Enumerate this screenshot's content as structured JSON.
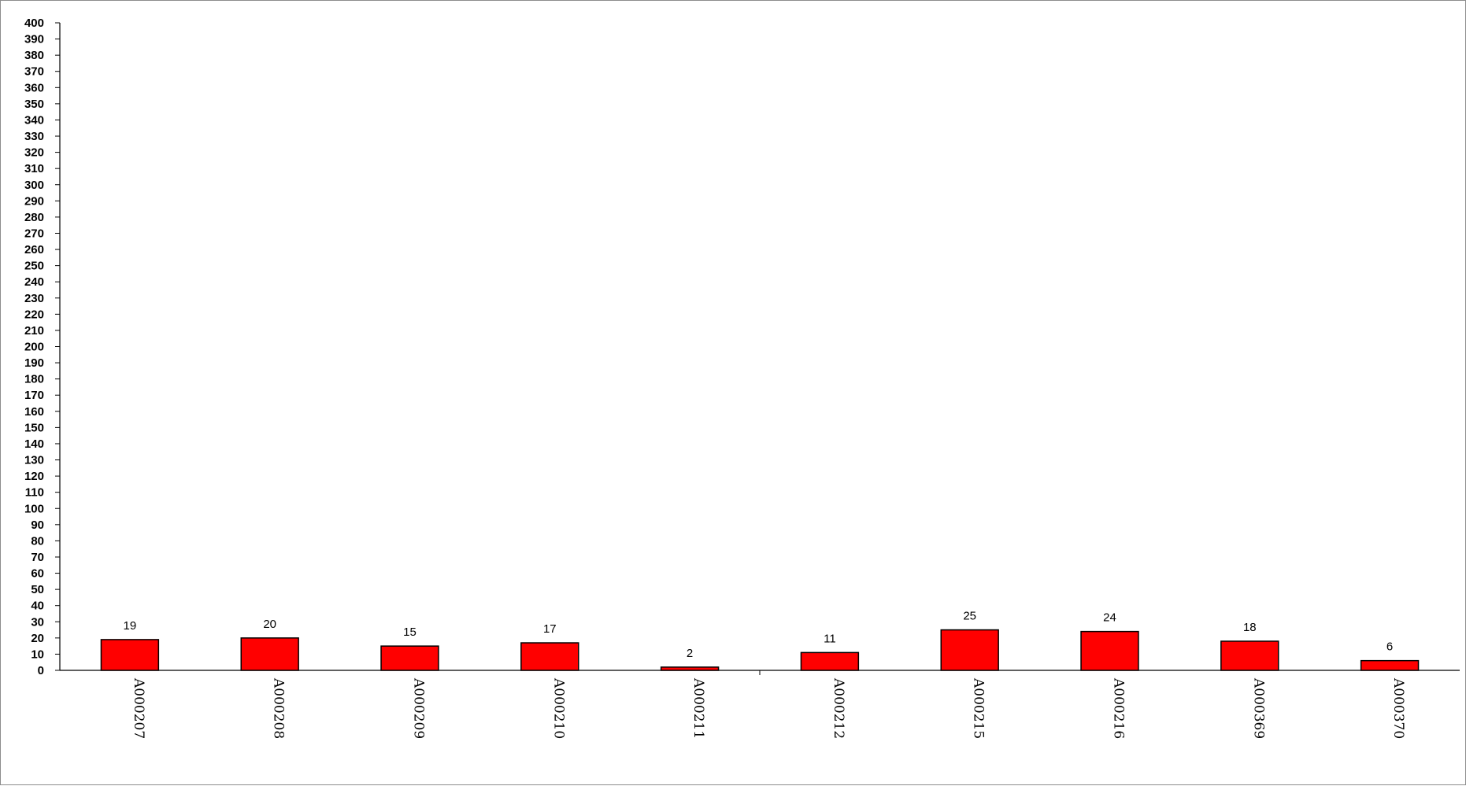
{
  "chart_data": {
    "type": "bar",
    "title": "",
    "xlabel": "",
    "ylabel": "",
    "categories": [
      "A000207",
      "A000208",
      "A000209",
      "A000210",
      "A000211",
      "A000212",
      "A000215",
      "A000216",
      "A000369",
      "A000370"
    ],
    "values": [
      19,
      20,
      15,
      17,
      2,
      11,
      25,
      24,
      18,
      6
    ],
    "ylim": [
      0,
      400
    ],
    "ytick_step": 10,
    "grid": false,
    "legend": "none",
    "bar_color": "#ff0000",
    "bar_edge_color": "#000000"
  }
}
